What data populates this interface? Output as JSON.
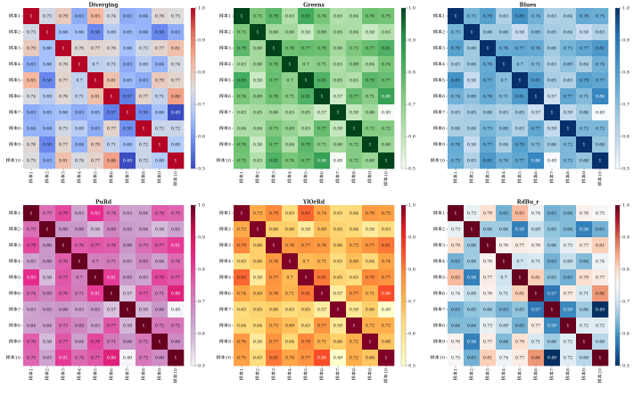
{
  "chart_data": [
    {
      "type": "heatmap",
      "title": "Diverging",
      "colormap": "coolwarm",
      "categories": [
        "样本1",
        "样本2",
        "样本3",
        "样本4",
        "样本5",
        "样本6",
        "样本7",
        "样本8",
        "样本9",
        "样本10"
      ],
      "matrix": [
        [
          1,
          0.73,
          0.79,
          0.63,
          0.83,
          0.74,
          0.63,
          0.64,
          0.76,
          0.75
        ],
        [
          0.73,
          1,
          0.66,
          0.66,
          0.58,
          0.69,
          0.65,
          0.64,
          0.58,
          0.63
        ],
        [
          0.79,
          0.66,
          1,
          0.76,
          0.77,
          0.76,
          0.66,
          0.73,
          0.77,
          0.81
        ],
        [
          0.63,
          0.66,
          0.76,
          1,
          0.7,
          0.71,
          0.63,
          0.69,
          0.64,
          0.74
        ],
        [
          0.83,
          0.58,
          0.77,
          0.7,
          1,
          0.81,
          0.65,
          0.63,
          0.79,
          0.77
        ],
        [
          0.74,
          0.69,
          0.76,
          0.71,
          0.81,
          1,
          0.57,
          0.77,
          0.71,
          0.86
        ],
        [
          0.63,
          0.65,
          0.66,
          0.63,
          0.65,
          0.57,
          1,
          0.59,
          0.66,
          0.49
        ],
        [
          0.64,
          0.64,
          0.73,
          0.69,
          0.63,
          0.77,
          0.59,
          1,
          0.72,
          0.72
        ],
        [
          0.76,
          0.58,
          0.77,
          0.64,
          0.79,
          0.71,
          0.66,
          0.72,
          1,
          0.68
        ],
        [
          0.75,
          0.63,
          0.81,
          0.74,
          0.77,
          0.86,
          0.49,
          0.72,
          0.68,
          1
        ]
      ],
      "colorbar_range": [
        0.5,
        1.0
      ],
      "colorbar_ticks": [
        "0.5",
        "0.6",
        "0.7",
        "0.8",
        "0.9",
        "1.0"
      ]
    },
    {
      "type": "heatmap",
      "title": "Greens",
      "colormap": "greens",
      "colorbar_range": [
        0.5,
        1.0
      ],
      "colorbar_ticks": [
        "0.5",
        "0.6",
        "0.7",
        "0.8",
        "0.9",
        "1.0"
      ]
    },
    {
      "type": "heatmap",
      "title": "Blues",
      "colormap": "blues",
      "colorbar_range": [
        0.5,
        1.0
      ],
      "colorbar_ticks": [
        "0.5",
        "0.6",
        "0.7",
        "0.8",
        "0.9",
        "1.0"
      ]
    },
    {
      "type": "heatmap",
      "title": "PuRd",
      "colormap": "purd",
      "colorbar_range": [
        0.5,
        1.0
      ],
      "colorbar_ticks": [
        "0.5",
        "0.6",
        "0.7",
        "0.8",
        "0.9",
        "1.0"
      ]
    },
    {
      "type": "heatmap",
      "title": "YlOrRd",
      "colormap": "ylorrd",
      "colorbar_range": [
        0.5,
        1.0
      ],
      "colorbar_ticks": [
        "0.5",
        "0.6",
        "0.7",
        "0.8",
        "0.9",
        "1.0"
      ]
    },
    {
      "type": "heatmap",
      "title": "RdBu_r",
      "colormap": "rdbu_r",
      "colorbar_range": [
        0.5,
        1.0
      ],
      "colorbar_ticks": [
        "0.5",
        "0.6",
        "0.7",
        "0.8",
        "0.9",
        "1.0"
      ]
    }
  ]
}
